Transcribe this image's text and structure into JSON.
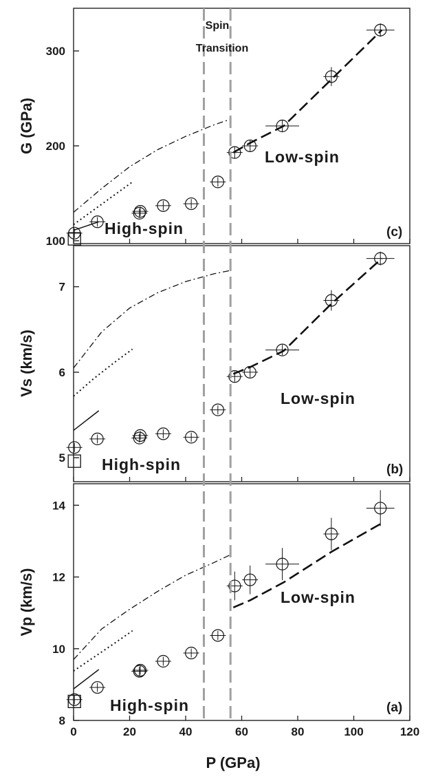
{
  "chart_data": {
    "type": "scatter",
    "xlabel": "P (GPa)",
    "xlim": [
      0,
      120
    ],
    "xticks": [
      0,
      20,
      40,
      60,
      80,
      100,
      120
    ],
    "spin_transition": {
      "label_line1": "Spin",
      "label_line2": "Transition",
      "boundaries": [
        46.5,
        56
      ]
    },
    "panels": [
      {
        "id": "c",
        "tag": "(c)",
        "ylabel": "G (GPa)",
        "ylim": [
          97,
          345
        ],
        "yticks": [
          100,
          200,
          300
        ],
        "high_spin_label": "High-spin",
        "low_spin_label": "Low-spin",
        "points": [
          {
            "x": 0.3,
            "y": 108,
            "ex": 0,
            "ey": 5
          },
          {
            "x": 8.5,
            "y": 120,
            "ex": 0,
            "ey": 5
          },
          {
            "x": 23.5,
            "y": 129,
            "ex": 0,
            "ey": 5
          },
          {
            "x": 23.8,
            "y": 131,
            "ex": 0,
            "ey": 5
          },
          {
            "x": 32,
            "y": 137,
            "ex": 0,
            "ey": 5
          },
          {
            "x": 42,
            "y": 139,
            "ex": 0,
            "ey": 5
          },
          {
            "x": 51.5,
            "y": 162,
            "ex": 0,
            "ey": 5
          },
          {
            "x": 57.5,
            "y": 193,
            "ex": 0,
            "ey": 6
          },
          {
            "x": 63,
            "y": 200,
            "ex": 0,
            "ey": 6
          },
          {
            "x": 74.5,
            "y": 221,
            "ex": 6,
            "ey": 6
          },
          {
            "x": 92,
            "y": 273,
            "ex": 0,
            "ey": 10
          },
          {
            "x": 109.5,
            "y": 322,
            "ex": 5,
            "ey": 7
          }
        ],
        "squares": [
          {
            "x": 0.3,
            "y": 102
          }
        ],
        "curves": [
          {
            "style": "dashdot",
            "x": [
              0,
              10,
              20,
              30,
              40,
              50,
              56
            ],
            "y": [
              130,
              155,
              178,
              196,
              210,
              222,
              228
            ]
          },
          {
            "style": "dotted",
            "x": [
              0,
              7,
              14,
              21
            ],
            "y": [
              117,
              132,
              147,
              162
            ]
          },
          {
            "style": "solid",
            "x": [
              0,
              9
            ],
            "y": [
              111,
              120
            ]
          },
          {
            "style": "dashed",
            "x": [
              57,
              63,
              75,
              92,
              110
            ],
            "y": [
              193,
              203,
              221,
              270,
              322
            ]
          }
        ]
      },
      {
        "id": "b",
        "tag": "(b)",
        "ylabel": "Vs (km/s)",
        "ylim": [
          4.72,
          7.48
        ],
        "yticks": [
          5,
          6,
          7
        ],
        "high_spin_label": "High-spin",
        "low_spin_label": "Low-spin",
        "points": [
          {
            "x": 0.3,
            "y": 5.12,
            "ex": 0,
            "ey": 0.05
          },
          {
            "x": 8.5,
            "y": 5.22,
            "ex": 0,
            "ey": 0.05
          },
          {
            "x": 23.5,
            "y": 5.23,
            "ex": 0,
            "ey": 0.05
          },
          {
            "x": 23.8,
            "y": 5.26,
            "ex": 0,
            "ey": 0.05
          },
          {
            "x": 32,
            "y": 5.28,
            "ex": 0,
            "ey": 0.05
          },
          {
            "x": 42,
            "y": 5.24,
            "ex": 0,
            "ey": 0.05
          },
          {
            "x": 51.5,
            "y": 5.56,
            "ex": 0,
            "ey": 0.05
          },
          {
            "x": 57.5,
            "y": 5.95,
            "ex": 0,
            "ey": 0.06
          },
          {
            "x": 63,
            "y": 6.0,
            "ex": 0,
            "ey": 0.06
          },
          {
            "x": 74.5,
            "y": 6.26,
            "ex": 6,
            "ey": 0.06
          },
          {
            "x": 92,
            "y": 6.84,
            "ex": 0,
            "ey": 0.12
          },
          {
            "x": 109.5,
            "y": 7.33,
            "ex": 5,
            "ey": 0.08
          }
        ],
        "squares": [
          {
            "x": 0.3,
            "y": 4.96
          }
        ],
        "curves": [
          {
            "style": "dashdot",
            "x": [
              0,
              10,
              20,
              30,
              40,
              50,
              56
            ],
            "y": [
              6.05,
              6.47,
              6.75,
              6.93,
              7.06,
              7.15,
              7.19
            ]
          },
          {
            "style": "dotted",
            "x": [
              0,
              7,
              14,
              21
            ],
            "y": [
              5.72,
              5.92,
              6.1,
              6.27
            ]
          },
          {
            "style": "solid",
            "x": [
              0,
              9
            ],
            "y": [
              5.32,
              5.55
            ]
          },
          {
            "style": "dashed",
            "x": [
              57,
              63,
              75,
              92,
              110
            ],
            "y": [
              5.98,
              6.06,
              6.25,
              6.8,
              7.33
            ]
          }
        ]
      },
      {
        "id": "a",
        "tag": "(a)",
        "ylabel": "Vp (km/s)",
        "ylim": [
          8,
          14.6
        ],
        "yticks": [
          8,
          10,
          12,
          14
        ],
        "high_spin_label": "High-spin",
        "low_spin_label": "Low-spin",
        "points": [
          {
            "x": 0.3,
            "y": 8.58,
            "ex": 0,
            "ey": 0.1
          },
          {
            "x": 8.5,
            "y": 8.92,
            "ex": 0,
            "ey": 0.1
          },
          {
            "x": 23.5,
            "y": 9.37,
            "ex": 0,
            "ey": 0.1
          },
          {
            "x": 23.8,
            "y": 9.4,
            "ex": 0,
            "ey": 0.1
          },
          {
            "x": 32,
            "y": 9.65,
            "ex": 0,
            "ey": 0.1
          },
          {
            "x": 42,
            "y": 9.88,
            "ex": 0,
            "ey": 0.1
          },
          {
            "x": 51.5,
            "y": 10.37,
            "ex": 0,
            "ey": 0.1
          },
          {
            "x": 57.5,
            "y": 11.75,
            "ex": 0,
            "ey": 0.4
          },
          {
            "x": 63,
            "y": 11.92,
            "ex": 0,
            "ey": 0.4
          },
          {
            "x": 74.5,
            "y": 12.36,
            "ex": 6,
            "ey": 0.45
          },
          {
            "x": 92,
            "y": 13.2,
            "ex": 0,
            "ey": 0.45
          },
          {
            "x": 109.5,
            "y": 13.92,
            "ex": 5,
            "ey": 0.5
          }
        ],
        "squares": [
          {
            "x": 0.3,
            "y": 8.53
          }
        ],
        "curves": [
          {
            "style": "dashdot",
            "x": [
              0,
              10,
              20,
              30,
              40,
              50,
              56
            ],
            "y": [
              9.7,
              10.55,
              11.1,
              11.6,
              12.05,
              12.4,
              12.62
            ]
          },
          {
            "style": "dotted",
            "x": [
              0,
              7,
              14,
              21
            ],
            "y": [
              9.38,
              9.75,
              10.12,
              10.5
            ]
          },
          {
            "style": "solid",
            "x": [
              0,
              9
            ],
            "y": [
              8.88,
              9.42
            ]
          },
          {
            "style": "dashed",
            "x": [
              57,
              63,
              75,
              92,
              110
            ],
            "y": [
              11.15,
              11.35,
              11.85,
              12.7,
              13.5
            ]
          }
        ]
      }
    ]
  }
}
